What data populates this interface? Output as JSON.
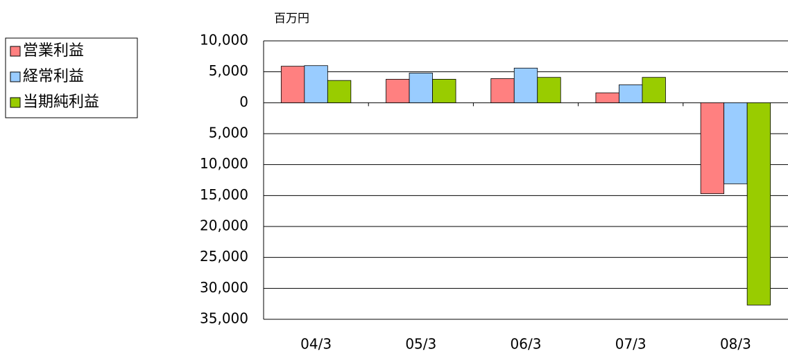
{
  "chart_data": {
    "type": "bar",
    "y_unit_label": "百万円",
    "categories": [
      "04/3",
      "05/3",
      "06/3",
      "07/3",
      "08/3"
    ],
    "series": [
      {
        "name": "営業利益",
        "color": "#ff8080",
        "values": [
          5900,
          3800,
          3900,
          1600,
          -14700
        ]
      },
      {
        "name": "経常利益",
        "color": "#99ccff",
        "values": [
          6000,
          4800,
          5600,
          2900,
          -13100
        ]
      },
      {
        "name": "当期純利益",
        "color": "#99cc00",
        "values": [
          3600,
          3800,
          4100,
          4100,
          -32700
        ]
      }
    ],
    "ylim": [
      -35000,
      10000
    ],
    "yticks": [
      {
        "value": 10000,
        "label": "10,000"
      },
      {
        "value": 5000,
        "label": "5,000"
      },
      0,
      {
        "value": -5000,
        "label": "5,000"
      },
      {
        "value": -10000,
        "label": "10,000"
      },
      {
        "value": -15000,
        "label": "15,000"
      },
      {
        "value": -20000,
        "label": "20,000"
      },
      {
        "value": -25000,
        "label": "25,000"
      },
      {
        "value": -30000,
        "label": "30,000"
      },
      {
        "value": -35000,
        "label": "35,000"
      }
    ],
    "grid": true,
    "legend": "left"
  }
}
